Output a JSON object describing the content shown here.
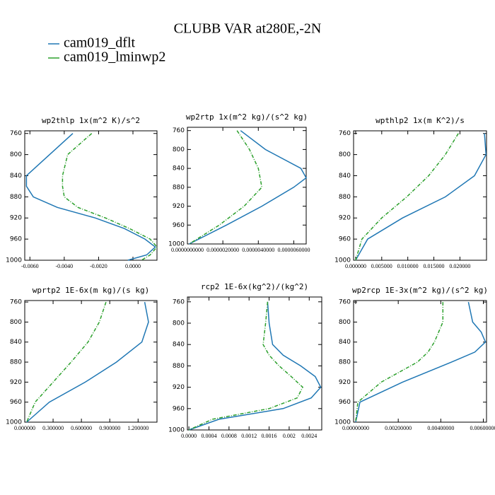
{
  "title": "CLUBB VAR at280E,-2N",
  "chart_data": [
    {
      "type": "line",
      "title": "wp2thlp   1x(m^2 K)/s^2",
      "y": [
        760,
        800,
        840,
        860,
        880,
        900,
        920,
        940,
        960,
        975,
        990,
        1000
      ],
      "ylim": [
        1000,
        755
      ],
      "yticks": [
        760,
        800,
        840,
        880,
        920,
        960,
        1000
      ],
      "xlim": [
        -0.0063,
        0.0014
      ],
      "xticks": [
        {
          "value": -0.006,
          "label": "-0.0060"
        },
        {
          "value": -0.004,
          "label": "-0.0040"
        },
        {
          "value": -0.002,
          "label": "-0.0020"
        },
        {
          "value": 0,
          "label": "0.0000"
        }
      ],
      "series": [
        {
          "name": "cam019_dflt",
          "color": "#1f77b4",
          "linestyle": "solid",
          "values": [
            -0.0035,
            -0.00485,
            -0.0062,
            -0.0062,
            -0.0058,
            -0.0044,
            -0.0022,
            -0.0005,
            0.0007,
            0.0013,
            0.0008,
            -0.0003
          ]
        },
        {
          "name": "cam019_lminwp2",
          "color": "#2ca02c",
          "linestyle": "dashed",
          "values": [
            -0.0024,
            -0.0038,
            -0.0041,
            -0.0041,
            -0.004,
            -0.0032,
            -0.0016,
            -0.0002,
            0.001,
            0.0014,
            0.001,
            0.0005
          ]
        }
      ]
    },
    {
      "type": "line",
      "title": "wp2rtp  1x(m^2 kg)/(s^2 kg)",
      "y": [
        760,
        800,
        840,
        860,
        880,
        920,
        960,
        1000
      ],
      "ylim": [
        1000,
        753
      ],
      "yticks": [
        760,
        800,
        840,
        880,
        920,
        960,
        1000
      ],
      "xlim": [
        0,
        6.7e-06
      ],
      "xticks": [
        {
          "value": 0,
          "label": "0.0000000000"
        },
        {
          "value": 2e-06,
          "label": "0.0000020000"
        },
        {
          "value": 4e-06,
          "label": "0.0000040000"
        },
        {
          "value": 6e-06,
          "label": "0.0000060000"
        }
      ],
      "series": [
        {
          "name": "cam019_dflt",
          "color": "#1f77b4",
          "linestyle": "solid",
          "values": [
            3e-06,
            4.4e-06,
            6.4e-06,
            6.7e-06,
            6e-06,
            4.2e-06,
            2.2e-06,
            1e-07
          ]
        },
        {
          "name": "cam019_lminwp2",
          "color": "#2ca02c",
          "linestyle": "dashed",
          "values": [
            2.8e-06,
            3.5e-06,
            4e-06,
            4.1e-06,
            4.2e-06,
            3.2e-06,
            1.8e-06,
            1e-07
          ]
        }
      ]
    },
    {
      "type": "line",
      "title": "wpthlp2  1x(m K^2)/s",
      "y": [
        760,
        800,
        840,
        880,
        920,
        960,
        1000
      ],
      "ylim": [
        1000,
        755
      ],
      "yticks": [
        760,
        800,
        840,
        880,
        920,
        960,
        1000
      ],
      "xlim": [
        -0.0004,
        0.0251
      ],
      "xticks": [
        {
          "value": 0,
          "label": "0.000000"
        },
        {
          "value": 0.005,
          "label": "0.005000"
        },
        {
          "value": 0.01,
          "label": "0.010000"
        },
        {
          "value": 0.015,
          "label": "0.015000"
        },
        {
          "value": 0.02,
          "label": "0.020000"
        }
      ],
      "series": [
        {
          "name": "cam019_dflt",
          "color": "#1f77b4",
          "linestyle": "solid",
          "values": [
            0.0247,
            0.025,
            0.0228,
            0.0172,
            0.009,
            0.0023,
            0
          ]
        },
        {
          "name": "cam019_lminwp2",
          "color": "#2ca02c",
          "linestyle": "dashed",
          "values": [
            0.0197,
            0.0172,
            0.014,
            0.0098,
            0.005,
            0.0012,
            0
          ]
        }
      ]
    },
    {
      "type": "line",
      "title": "wprtp2  1E-6x(m kg)/(s kg)",
      "y": [
        760,
        800,
        840,
        880,
        920,
        960,
        1000
      ],
      "ylim": [
        1000,
        757
      ],
      "yticks": [
        760,
        800,
        840,
        880,
        920,
        960,
        1000
      ],
      "xlim": [
        0,
        1.4
      ],
      "xticks": [
        {
          "value": 0,
          "label": "0.000000"
        },
        {
          "value": 0.3,
          "label": "0.300000"
        },
        {
          "value": 0.6,
          "label": "0.600000"
        },
        {
          "value": 0.9,
          "label": "0.900000"
        },
        {
          "value": 1.2,
          "label": "1.200000"
        }
      ],
      "series": [
        {
          "name": "cam019_dflt",
          "color": "#1f77b4",
          "linestyle": "solid",
          "values": [
            1.27,
            1.31,
            1.24,
            0.97,
            0.64,
            0.26,
            0.02
          ]
        },
        {
          "name": "cam019_lminwp2",
          "color": "#2ca02c",
          "linestyle": "dashed",
          "values": [
            0.86,
            0.79,
            0.67,
            0.49,
            0.3,
            0.11,
            0.02
          ]
        }
      ]
    },
    {
      "type": "line",
      "title": "rcp2  1E-6x(kg^2)/(kg^2)",
      "y": [
        760,
        800,
        840,
        860,
        880,
        900,
        920,
        940,
        960,
        980,
        1000
      ],
      "ylim": [
        1000,
        751
      ],
      "yticks": [
        760,
        800,
        840,
        880,
        920,
        960,
        1000
      ],
      "xlim": [
        -3e-05,
        0.00265
      ],
      "xticks": [
        {
          "value": 0,
          "label": "0.0000"
        },
        0.0004,
        0.0008,
        0.0012,
        0.0016,
        0.002,
        0.0024
      ],
      "series": [
        {
          "name": "cam019_dflt",
          "color": "#1f77b4",
          "linestyle": "solid",
          "values": [
            0.00157,
            0.0016,
            0.00167,
            0.00188,
            0.00223,
            0.00252,
            0.00263,
            0.00244,
            0.00188,
            0.0006,
            0
          ]
        },
        {
          "name": "cam019_lminwp2",
          "color": "#2ca02c",
          "linestyle": "dashed",
          "values": [
            0.00157,
            0.00153,
            0.00148,
            0.0016,
            0.0018,
            0.00204,
            0.00227,
            0.00216,
            0.0016,
            0.00047,
            0
          ]
        }
      ]
    },
    {
      "type": "line",
      "title": "wp2rcp  1E-3x(m^2 kg)/(s^2 kg)",
      "y": [
        760,
        800,
        820,
        840,
        860,
        880,
        920,
        960,
        1000
      ],
      "ylim": [
        1000,
        757
      ],
      "yticks": [
        760,
        800,
        840,
        880,
        920,
        960,
        1000
      ],
      "xlim": [
        -0.0001,
        0.00615
      ],
      "xticks": [
        {
          "value": 0,
          "label": "0.00000000"
        },
        {
          "value": 0.002,
          "label": "0.00200000"
        },
        {
          "value": 0.004,
          "label": "0.00400000"
        },
        {
          "value": 0.006,
          "label": "0.00600000"
        }
      ],
      "series": [
        {
          "name": "cam019_dflt",
          "color": "#1f77b4",
          "linestyle": "solid",
          "values": [
            0.0053,
            0.0055,
            0.0059,
            0.0061,
            0.0056,
            0.0045,
            0.0022,
            0.0002,
            0
          ]
        },
        {
          "name": "cam019_lminwp2",
          "color": "#2ca02c",
          "linestyle": "dashed",
          "values": [
            0.0041,
            0.0041,
            0.0039,
            0.0037,
            0.0034,
            0.0029,
            0.0012,
            0.0001,
            0
          ]
        }
      ]
    }
  ]
}
